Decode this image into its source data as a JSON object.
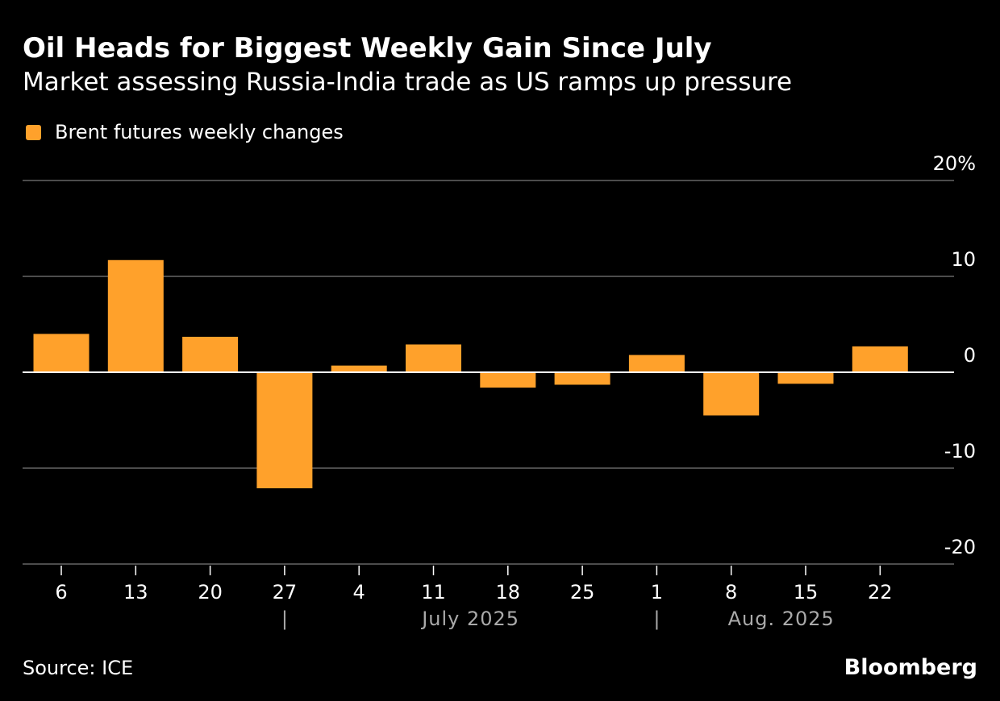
{
  "header": {
    "title": "Oil Heads for Biggest Weekly Gain Since July",
    "subtitle": "Market assessing Russia-India trade as US ramps up pressure"
  },
  "footer": {
    "source": "Source: ICE",
    "brand": "Bloomberg"
  },
  "colors": {
    "bar": "#ffa12b",
    "grid": "#666666",
    "axis_month": "#aaaaaa"
  },
  "chart_data": {
    "type": "bar",
    "title": "Oil Heads for Biggest Weekly Gain Since July",
    "legend": [
      "Brent futures weekly changes"
    ],
    "legend_placement": "top-left",
    "categories": [
      "6",
      "13",
      "20",
      "27",
      "4",
      "11",
      "18",
      "25",
      "1",
      "8",
      "15",
      "22"
    ],
    "values": [
      4.0,
      11.7,
      3.7,
      -12.1,
      0.7,
      2.9,
      -1.6,
      -1.3,
      1.8,
      -4.5,
      -1.2,
      2.7
    ],
    "month_labels": [
      {
        "label": "July 2025",
        "start_index": 3
      },
      {
        "label": "Aug. 2025",
        "start_index": 8
      }
    ],
    "yticks": [
      {
        "value": 20,
        "label": "20%"
      },
      {
        "value": 10,
        "label": "10"
      },
      {
        "value": 0,
        "label": "0"
      },
      {
        "value": -10,
        "label": "-10"
      },
      {
        "value": -20,
        "label": "-20"
      }
    ],
    "ylim": [
      -20,
      20
    ],
    "xlabel": "",
    "ylabel": "",
    "grid": true,
    "yaxis_side": "right"
  }
}
